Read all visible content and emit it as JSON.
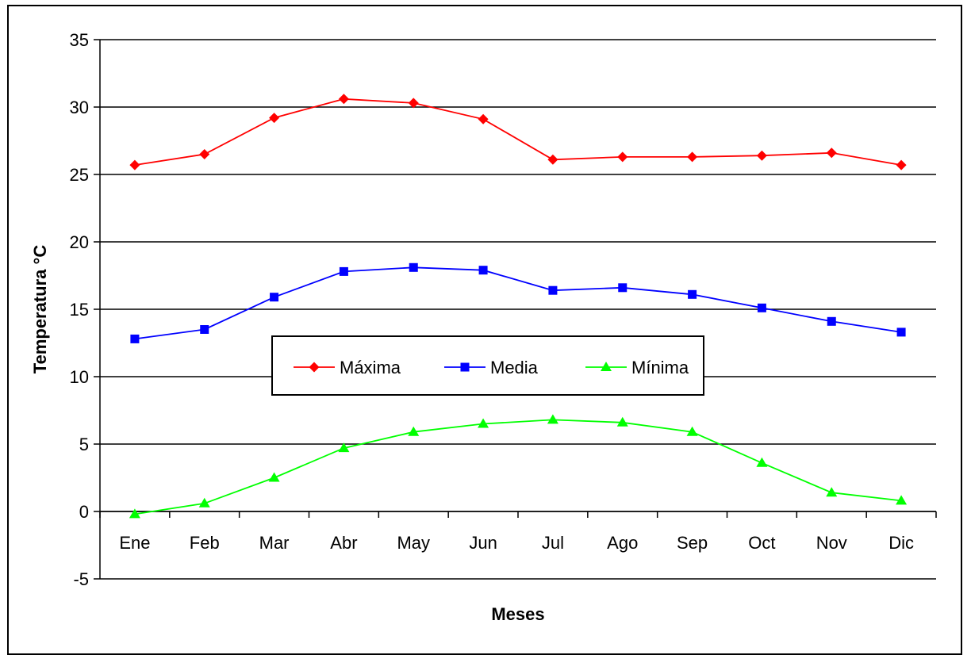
{
  "chart_data": {
    "type": "line",
    "categories": [
      "Ene",
      "Feb",
      "Mar",
      "Abr",
      "May",
      "Jun",
      "Jul",
      "Ago",
      "Sep",
      "Oct",
      "Nov",
      "Dic"
    ],
    "series": [
      {
        "name": "Máxima",
        "color": "#ff0000",
        "marker": "diamond",
        "values": [
          25.7,
          26.5,
          29.2,
          30.6,
          30.3,
          29.1,
          26.1,
          26.3,
          26.3,
          26.4,
          26.6,
          25.7
        ]
      },
      {
        "name": "Media",
        "color": "#0000ff",
        "marker": "square",
        "values": [
          12.8,
          13.5,
          15.9,
          17.8,
          18.1,
          17.9,
          16.4,
          16.6,
          16.1,
          15.1,
          14.1,
          13.3
        ]
      },
      {
        "name": "Mínima",
        "color": "#00ff00",
        "marker": "triangle",
        "values": [
          -0.2,
          0.6,
          2.5,
          4.7,
          5.9,
          6.5,
          6.8,
          6.6,
          5.9,
          3.6,
          1.4,
          0.8
        ]
      }
    ],
    "xlabel": "Meses",
    "ylabel": "Temperatura °C",
    "ylim": [
      -5,
      35
    ],
    "yticks": [
      "-5",
      "0",
      "5",
      "10",
      "15",
      "20",
      "25",
      "30",
      "35"
    ],
    "grid": "horizontal",
    "legend_position": "center"
  }
}
